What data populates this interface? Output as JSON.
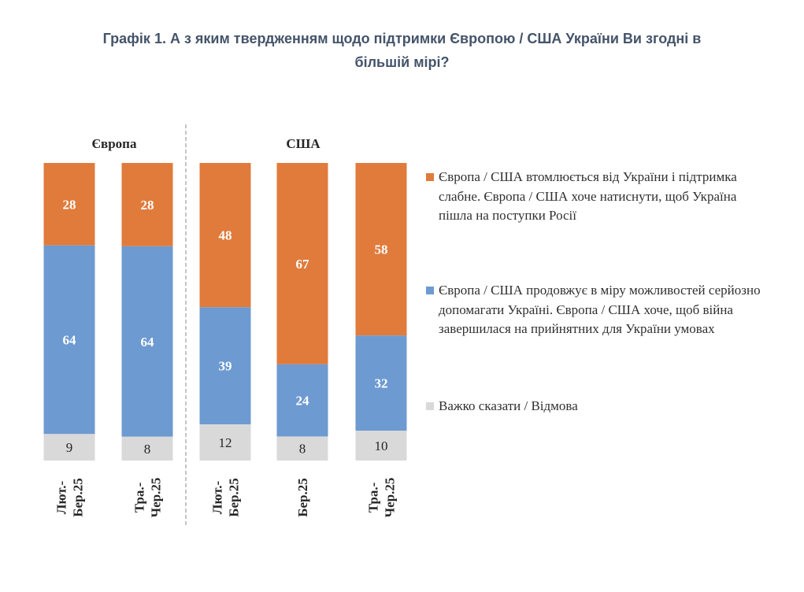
{
  "title_lines": [
    "Графік 1. А з яким твердженням щодо підтримки Європою / США України Ви згодні в",
    "більшій мірі?"
  ],
  "chart_data": {
    "type": "bar",
    "stacked": true,
    "percent": true,
    "panels": [
      {
        "label": "Європа",
        "categories": [
          "Лют.-\nБер.25",
          "Тра.-\nЧер.25"
        ]
      },
      {
        "label": "США",
        "categories": [
          "Лют.-\nБер.25",
          "Бер.25",
          "Тра.-\nЧер.25"
        ]
      }
    ],
    "categories": [
      "Лют.-\nБер.25",
      "Тра.-\nЧер.25",
      "Лют.-\nБер.25",
      "Бер.25",
      "Тра.-\nЧер.25"
    ],
    "series": [
      {
        "name": "Європа / США втомлюється від України і підтримка слабне. Європа / США хоче натиснути, щоб Україна пішла на поступки Росії",
        "color": "#e07b3c",
        "values": [
          28,
          28,
          48,
          67,
          58
        ]
      },
      {
        "name": "Європа / США продовжує в міру можливостей серйозно допомагати Україні. Європа / США хоче, щоб війна завершилася на прийнятних для України умовах",
        "color": "#6d9ad1",
        "values": [
          64,
          64,
          39,
          24,
          32
        ]
      },
      {
        "name": "Важко сказати / Відмова",
        "color": "#d9d9d9",
        "values": [
          9,
          8,
          12,
          8,
          10
        ]
      }
    ],
    "legend_position": "right",
    "grid": false
  }
}
